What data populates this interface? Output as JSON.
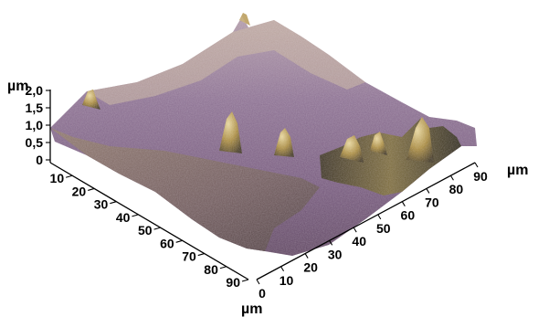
{
  "chart_data": {
    "type": "surface-3d",
    "colors": {
      "surface_high": "#d8c8a8",
      "surface_mid": "#8c6f93",
      "surface_low": "#6b4a7a",
      "shadow": "#2a2417",
      "peak": "#a07d35"
    },
    "z_axis": {
      "unit": "µm",
      "ticks": [
        "2,0",
        "1,5",
        "1,0",
        "0,5",
        "0"
      ],
      "range": [
        0,
        2.0
      ]
    },
    "x_axis": {
      "unit": "µm",
      "ticks": [
        "10",
        "20",
        "30",
        "40",
        "50",
        "60",
        "70",
        "80",
        "90"
      ],
      "range": [
        0,
        90
      ]
    },
    "y_axis": {
      "unit": "µm",
      "ticks": [
        "0",
        "10",
        "20",
        "30",
        "40",
        "50",
        "60",
        "70",
        "80",
        "90"
      ],
      "range": [
        0,
        90
      ]
    }
  }
}
